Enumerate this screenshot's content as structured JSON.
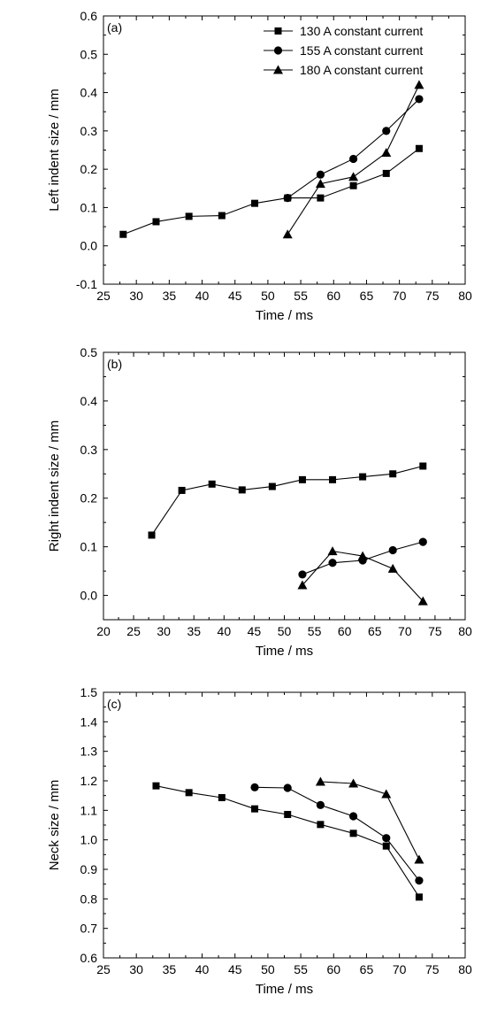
{
  "chart_data": [
    {
      "type": "line",
      "panel_label": "(a)",
      "xlabel": "Time / ms",
      "ylabel": "Left indent size / mm",
      "xlim": [
        25,
        80
      ],
      "ylim": [
        -0.1,
        0.6
      ],
      "xticks": [
        25,
        30,
        35,
        40,
        45,
        50,
        55,
        60,
        65,
        70,
        75,
        80
      ],
      "yticks": [
        -0.1,
        0.0,
        0.1,
        0.2,
        0.3,
        0.4,
        0.5,
        0.6
      ],
      "ytick_labels": [
        "-0.1",
        "0.0",
        "0.1",
        "0.2",
        "0.3",
        "0.4",
        "0.5",
        "0.6"
      ],
      "legend": "top-right",
      "grid": false,
      "series": [
        {
          "name": "130 A constant current",
          "marker": "square",
          "x": [
            28,
            33,
            38,
            43,
            48,
            53,
            58,
            63,
            68,
            73
          ],
          "y": [
            0.03,
            0.063,
            0.077,
            0.079,
            0.111,
            0.125,
            0.125,
            0.157,
            0.189,
            0.254
          ]
        },
        {
          "name": "155 A constant current",
          "marker": "circle",
          "x": [
            53,
            58,
            63,
            68,
            73
          ],
          "y": [
            0.125,
            0.186,
            0.227,
            0.3,
            0.383
          ]
        },
        {
          "name": "180 A constant current",
          "marker": "triangle",
          "x": [
            53,
            58,
            63,
            68,
            73
          ],
          "y": [
            0.03,
            0.162,
            0.18,
            0.243,
            0.42
          ]
        }
      ]
    },
    {
      "type": "line",
      "panel_label": "(b)",
      "xlabel": "Time / ms",
      "ylabel": "Right indent size / mm",
      "xlim": [
        20,
        80
      ],
      "ylim": [
        -0.05,
        0.5
      ],
      "xticks": [
        20,
        25,
        30,
        35,
        40,
        45,
        50,
        55,
        60,
        65,
        70,
        75,
        80
      ],
      "yticks": [
        0.0,
        0.1,
        0.2,
        0.3,
        0.4,
        0.5
      ],
      "ytick_labels": [
        "0.0",
        "0.1",
        "0.2",
        "0.3",
        "0.4",
        "0.5"
      ],
      "grid": false,
      "series": [
        {
          "marker": "square",
          "x": [
            28,
            33,
            38,
            43,
            48,
            53,
            58,
            63,
            68,
            73
          ],
          "y": [
            0.124,
            0.216,
            0.229,
            0.217,
            0.224,
            0.238,
            0.238,
            0.244,
            0.25,
            0.266
          ]
        },
        {
          "marker": "circle",
          "x": [
            53,
            58,
            63,
            68,
            73
          ],
          "y": [
            0.043,
            0.067,
            0.072,
            0.093,
            0.11
          ]
        },
        {
          "marker": "triangle",
          "x": [
            53,
            58,
            63,
            68,
            73
          ],
          "y": [
            0.021,
            0.091,
            0.081,
            0.055,
            -0.012
          ]
        }
      ]
    },
    {
      "type": "line",
      "panel_label": "(c)",
      "xlabel": "Time / ms",
      "ylabel": "Neck size / mm",
      "xlim": [
        25,
        80
      ],
      "ylim": [
        0.6,
        1.5
      ],
      "xticks": [
        25,
        30,
        35,
        40,
        45,
        50,
        55,
        60,
        65,
        70,
        75,
        80
      ],
      "yticks": [
        0.6,
        0.7,
        0.8,
        0.9,
        1.0,
        1.1,
        1.2,
        1.3,
        1.4,
        1.5
      ],
      "ytick_labels": [
        "0.6",
        "0.7",
        "0.8",
        "0.9",
        "1.0",
        "1.1",
        "1.2",
        "1.3",
        "1.4",
        "1.5"
      ],
      "grid": false,
      "series": [
        {
          "marker": "square",
          "x": [
            33,
            38,
            43,
            48,
            53,
            58,
            63,
            68,
            73
          ],
          "y": [
            1.183,
            1.16,
            1.143,
            1.105,
            1.086,
            1.052,
            1.022,
            0.979,
            0.806
          ]
        },
        {
          "marker": "circle",
          "x": [
            48,
            53,
            58,
            63,
            68,
            73
          ],
          "y": [
            1.178,
            1.176,
            1.118,
            1.08,
            1.006,
            0.862
          ]
        },
        {
          "marker": "triangle",
          "x": [
            58,
            63,
            68,
            73
          ],
          "y": [
            1.197,
            1.191,
            1.155,
            0.933
          ]
        }
      ]
    }
  ]
}
